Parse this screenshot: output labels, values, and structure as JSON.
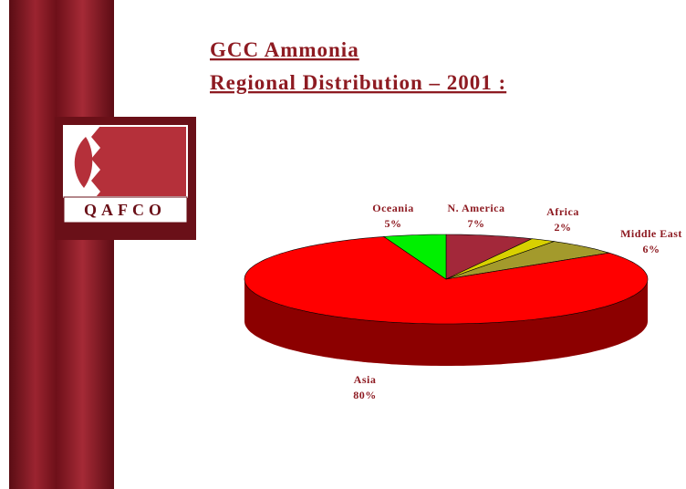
{
  "chart_data": {
    "type": "pie",
    "title": [
      "GCC Ammonia",
      "Regional Distribution – 2001 :"
    ],
    "logo_text": "QAFCO",
    "categories": [
      "N. America",
      "Africa",
      "Middle East",
      "Asia",
      "Oceania"
    ],
    "values": [
      7,
      2,
      6,
      80,
      5
    ],
    "value_labels": [
      "7%",
      "2%",
      "6%",
      "80%",
      "5%"
    ],
    "colors": [
      "#a3283a",
      "#d8d000",
      "#a39a2c",
      "#ff0000",
      "#00f000"
    ]
  }
}
